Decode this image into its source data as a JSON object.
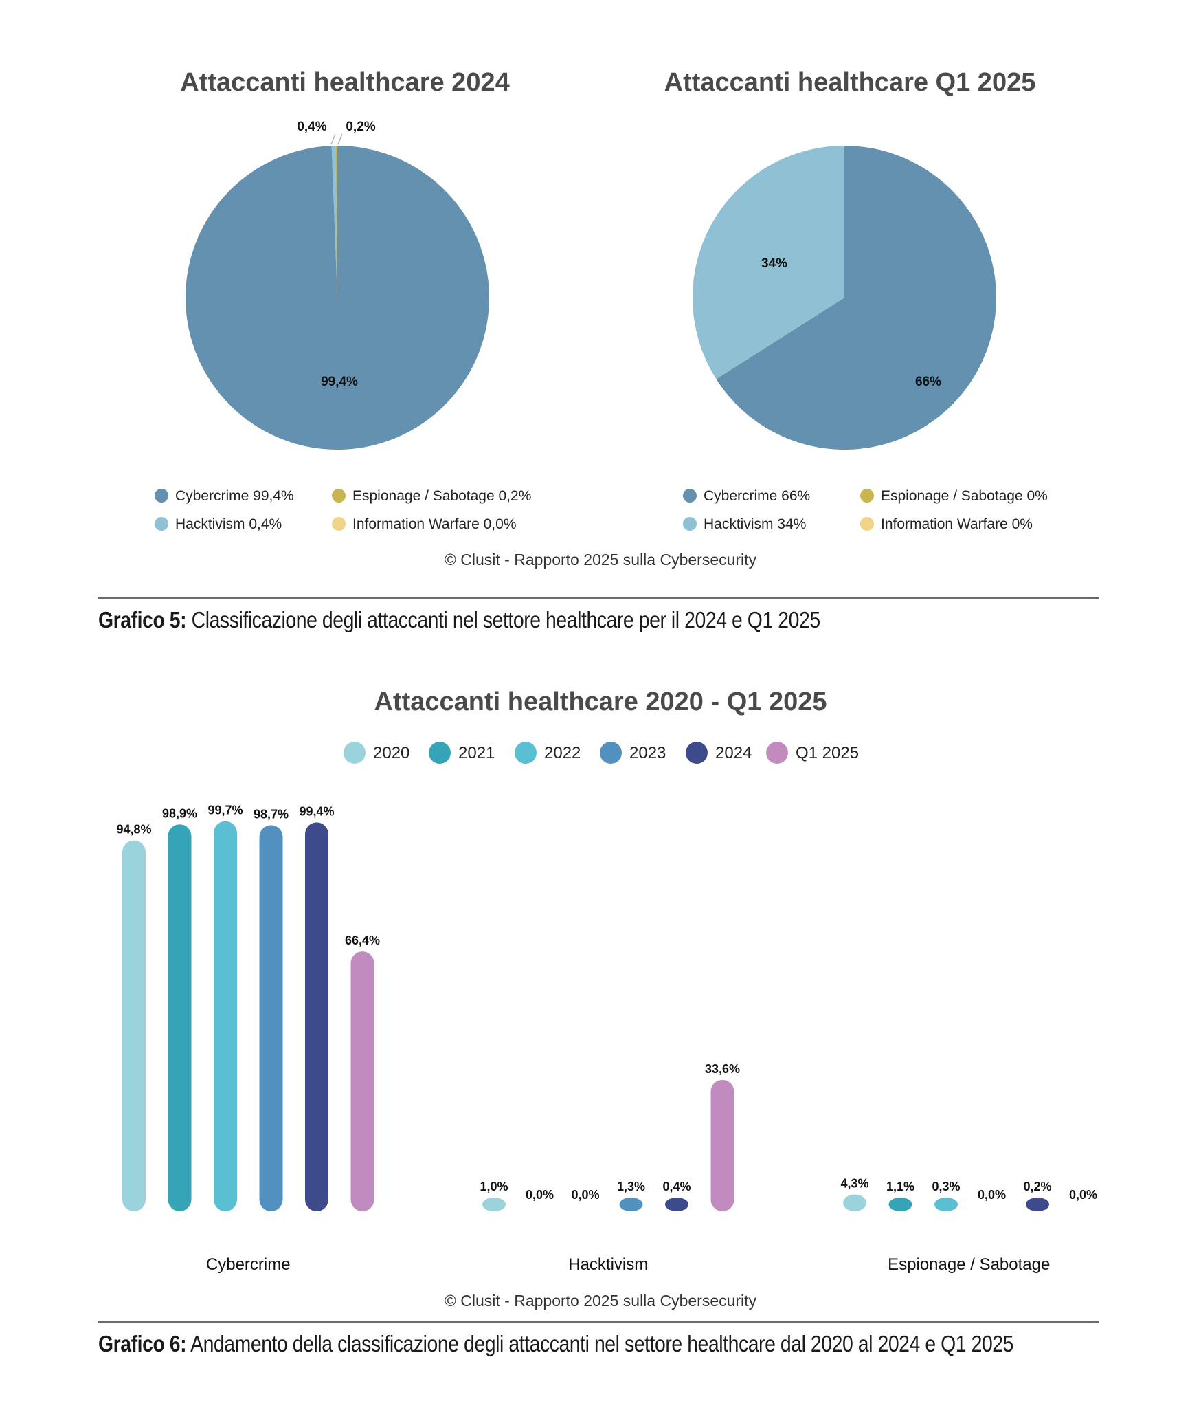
{
  "colors": {
    "cybercrime": "#6491B0",
    "hacktivism": "#8FC0D4",
    "espionage": "#C8B54D",
    "warfare": "#F2D38A",
    "title": "#4a4a4a"
  },
  "chart_data": [
    {
      "type": "pie",
      "title": "Attaccanti healthcare 2024",
      "slices": [
        {
          "name": "Cybercrime",
          "value": 99.4,
          "label": "99,4%",
          "legend": "Cybercrime 99,4%"
        },
        {
          "name": "Hacktivism",
          "value": 0.4,
          "label": "0,4%",
          "legend": "Hacktivism 0,4%"
        },
        {
          "name": "Espionage / Sabotage",
          "value": 0.2,
          "label": "0,2%",
          "legend": "Espionage / Sabotage 0,2%"
        },
        {
          "name": "Information Warfare",
          "value": 0.0,
          "label": "",
          "legend": "Information Warfare 0,0%"
        }
      ]
    },
    {
      "type": "pie",
      "title": "Attaccanti healthcare Q1 2025",
      "slices": [
        {
          "name": "Cybercrime",
          "value": 66,
          "label": "66%",
          "legend": "Cybercrime 66%"
        },
        {
          "name": "Hacktivism",
          "value": 34,
          "label": "34%",
          "legend": "Hacktivism 34%"
        },
        {
          "name": "Espionage / Sabotage",
          "value": 0,
          "label": "",
          "legend": "Espionage / Sabotage 0%"
        },
        {
          "name": "Information Warfare",
          "value": 0,
          "label": "",
          "legend": "Information Warfare 0%"
        }
      ]
    },
    {
      "type": "bar",
      "title": "Attaccanti healthcare 2020 - Q1 2025",
      "categories": [
        "Cybercrime",
        "Hacktivism",
        "Espionage / Sabotage"
      ],
      "series": [
        {
          "name": "2020",
          "color": "#9BD3DC",
          "values": [
            94.8,
            1.0,
            4.3
          ],
          "labels": [
            "94,8%",
            "1,0%",
            "4,3%"
          ]
        },
        {
          "name": "2021",
          "color": "#35A4B6",
          "values": [
            98.9,
            0.0,
            1.1
          ],
          "labels": [
            "98,9%",
            "0,0%",
            "1,1%"
          ]
        },
        {
          "name": "2022",
          "color": "#5BBFD4",
          "values": [
            99.7,
            0.0,
            0.3
          ],
          "labels": [
            "99,7%",
            "0,0%",
            "0,3%"
          ]
        },
        {
          "name": "2023",
          "color": "#5290BF",
          "values": [
            98.7,
            1.3,
            0.0
          ],
          "labels": [
            "98,7%",
            "1,3%",
            "0,0%"
          ]
        },
        {
          "name": "2024",
          "color": "#3D4A8C",
          "values": [
            99.4,
            0.4,
            0.2
          ],
          "labels": [
            "99,4%",
            "0,4%",
            "0,2%"
          ]
        },
        {
          "name": "Q1 2025",
          "color": "#C18BC0",
          "values": [
            66.4,
            33.6,
            0.0
          ],
          "labels": [
            "66,4%",
            "33,6%",
            "0,0%"
          ]
        }
      ],
      "ylim": [
        0,
        100
      ],
      "legend": "top-center"
    }
  ],
  "copyright": "© Clusit - Rapporto 2025 sulla Cybersecurity",
  "captions": {
    "c5_label": "Grafico 5:",
    "c5_text": " Classificazione degli attaccanti nel settore healthcare per il  2024 e Q1 2025",
    "c6_label": "Grafico 6:",
    "c6_text": " Andamento della classificazione degli attaccanti nel settore healthcare dal 2020 al  2024 e Q1 2025"
  }
}
